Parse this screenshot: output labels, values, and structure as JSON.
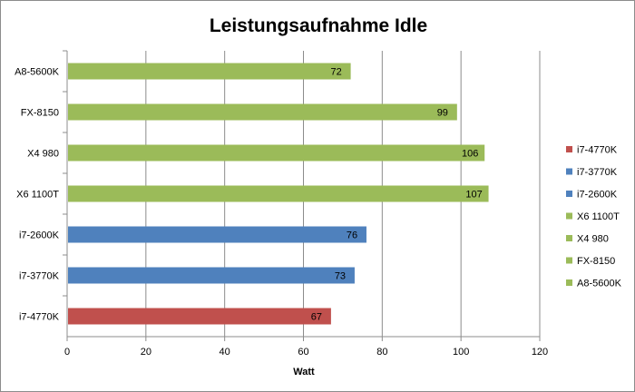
{
  "chart_data": {
    "type": "bar",
    "orientation": "horizontal",
    "title": "Leistungsaufnahme Idle",
    "xlabel": "Watt",
    "ylabel": "",
    "xlim": [
      0,
      120
    ],
    "xticks": [
      0,
      20,
      40,
      60,
      80,
      100,
      120
    ],
    "grid": true,
    "legend_position": "right",
    "categories": [
      "A8-5600K",
      "FX-8150",
      "X4 980",
      "X6 1100T",
      "i7-2600K",
      "i7-3770K",
      "i7-4770K"
    ],
    "values": [
      72,
      99,
      106,
      107,
      76,
      73,
      67
    ],
    "bar_colors": [
      "#9bbb59",
      "#9bbb59",
      "#9bbb59",
      "#9bbb59",
      "#4f81bd",
      "#4f81bd",
      "#c0504d"
    ],
    "legend": [
      {
        "label": "i7-4770K",
        "color": "#c0504d"
      },
      {
        "label": "i7-3770K",
        "color": "#4f81bd"
      },
      {
        "label": "i7-2600K",
        "color": "#4f81bd"
      },
      {
        "label": "X6 1100T",
        "color": "#9bbb59"
      },
      {
        "label": "X4 980",
        "color": "#9bbb59"
      },
      {
        "label": "FX-8150",
        "color": "#9bbb59"
      },
      {
        "label": "A8-5600K",
        "color": "#9bbb59"
      }
    ]
  }
}
